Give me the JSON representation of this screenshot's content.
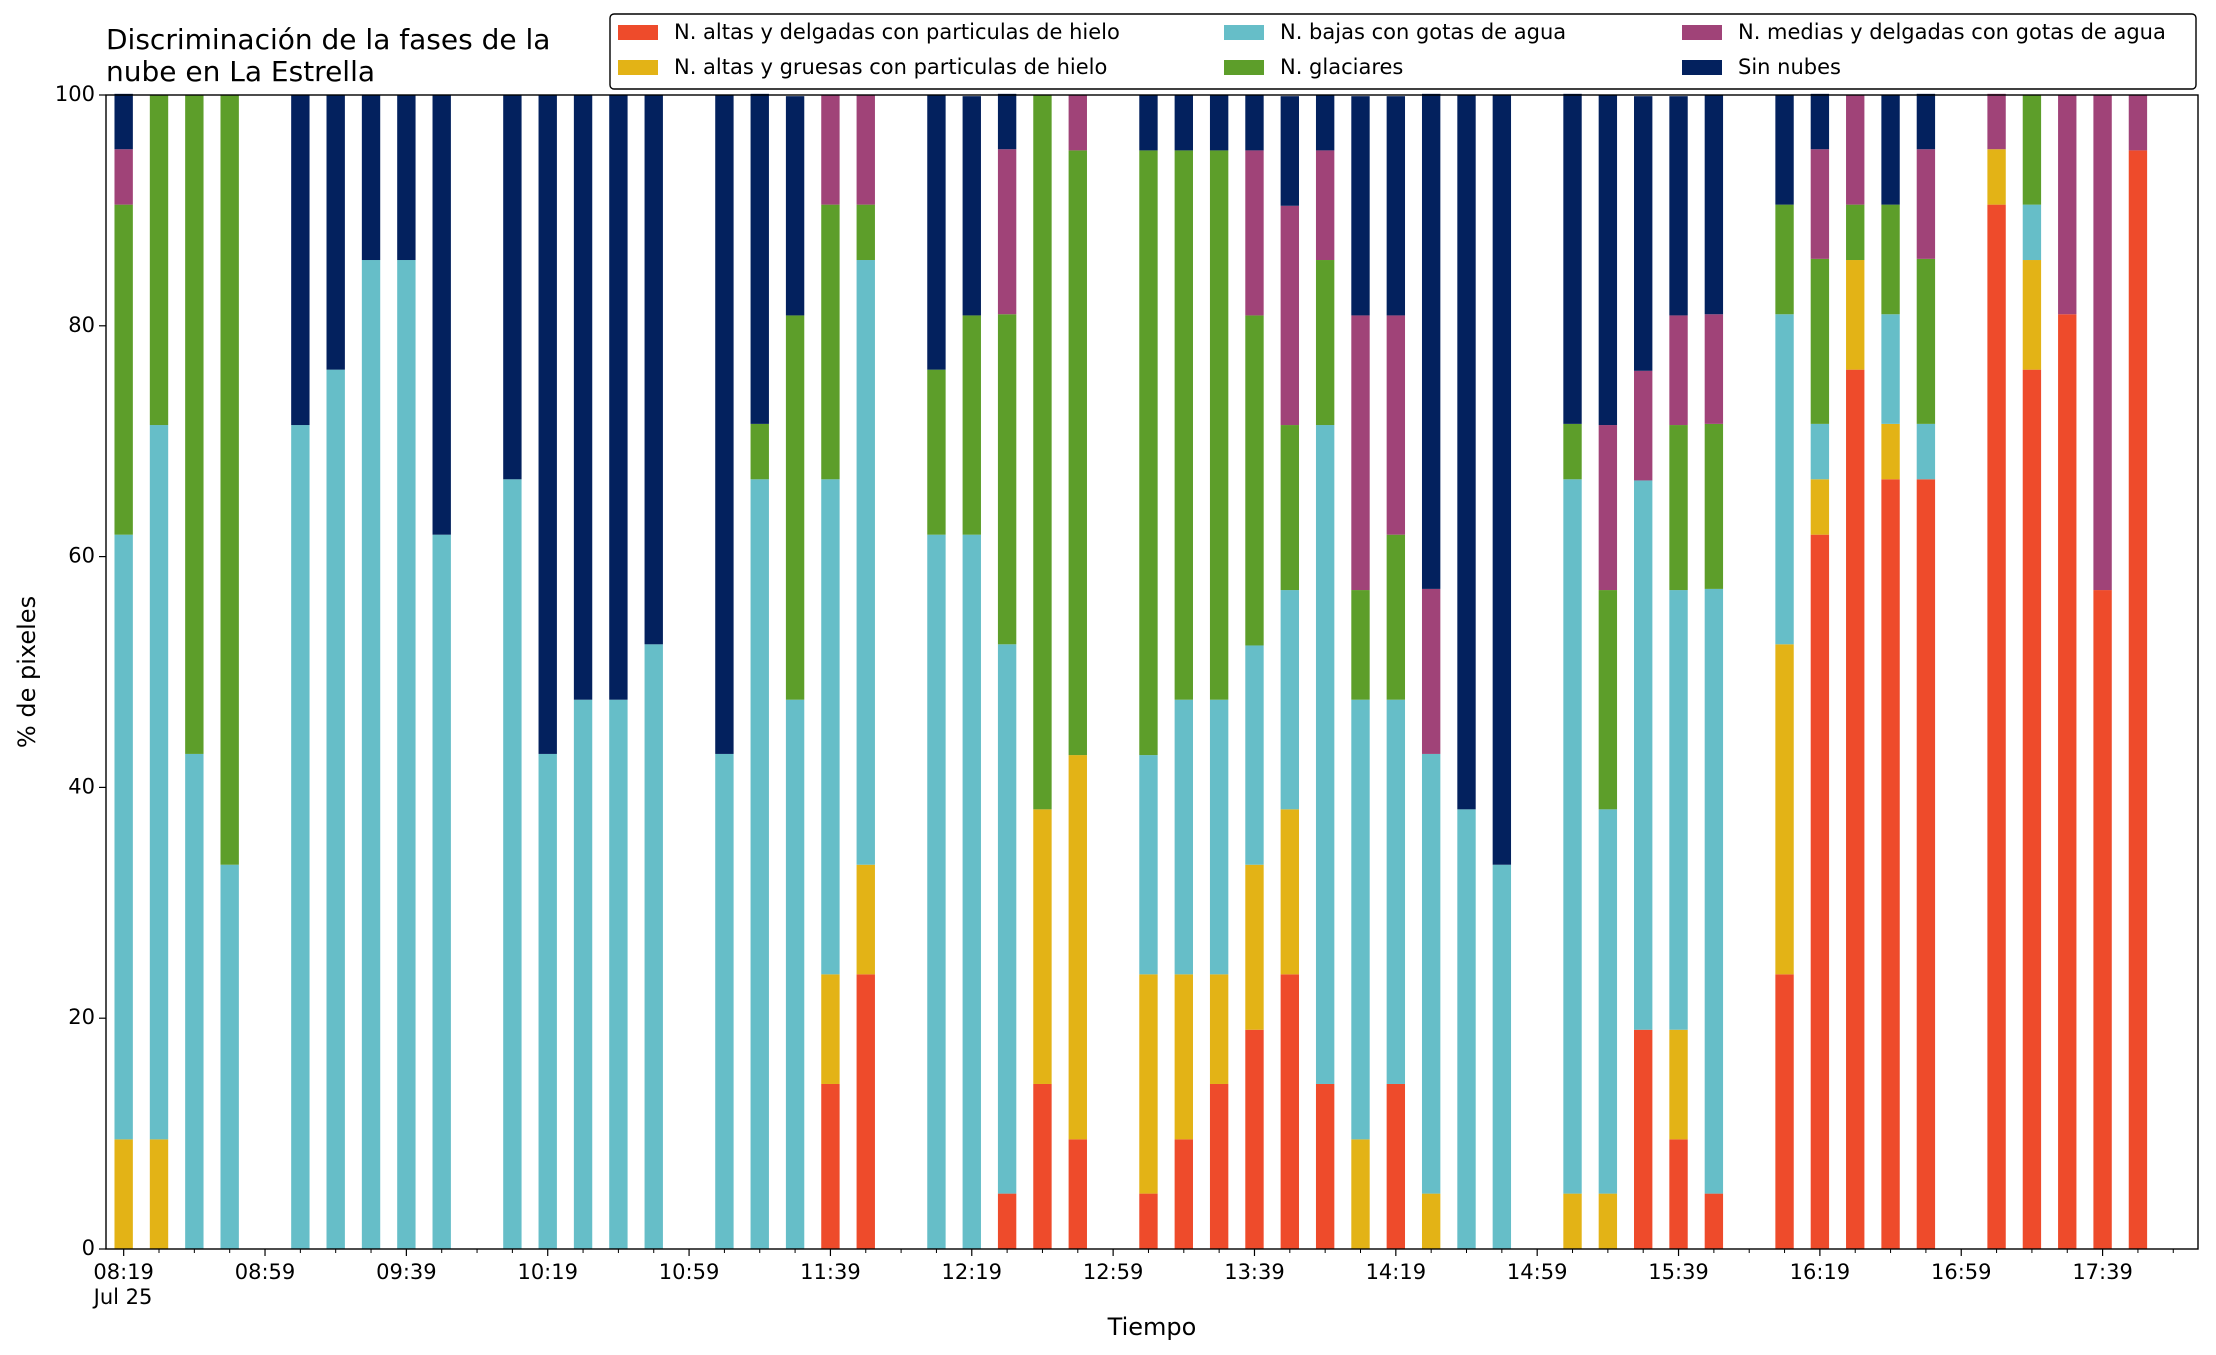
{
  "chart_data": {
    "type": "stacked_bar",
    "title": [
      "Discriminación de la fases de la",
      "nube en La Estrella"
    ],
    "xlabel": "Tiempo",
    "ylabel": "% de pixeles",
    "x_date_label": "Jul 25",
    "x": [
      "08:19",
      "08:29",
      "08:39",
      "08:49",
      "09:09",
      "09:19",
      "09:29",
      "09:39",
      "09:49",
      "10:09",
      "10:19",
      "10:29",
      "10:39",
      "10:49",
      "11:09",
      "11:19",
      "11:29",
      "11:39",
      "11:49",
      "12:09",
      "12:19",
      "12:29",
      "12:39",
      "12:49",
      "13:09",
      "13:19",
      "13:29",
      "13:39",
      "13:49",
      "13:59",
      "14:09",
      "14:19",
      "14:29",
      "14:39",
      "14:49",
      "15:09",
      "15:19",
      "15:29",
      "15:39",
      "15:49",
      "16:09",
      "16:19",
      "16:29",
      "16:39",
      "16:49",
      "17:09",
      "17:19",
      "17:29",
      "17:39",
      "17:49"
    ],
    "series": [
      {
        "name": "N. altas y delgadas con particulas de hielo",
        "color": "#ee4b2b",
        "values": [
          0,
          0,
          0,
          0,
          0,
          0,
          0,
          0,
          0,
          0,
          0,
          0,
          0,
          0,
          0,
          0,
          0,
          14.3,
          23.8,
          0,
          0,
          4.8,
          14.3,
          9.5,
          4.8,
          9.5,
          14.3,
          19.0,
          23.8,
          14.3,
          0,
          14.3,
          0,
          0,
          0,
          0,
          0,
          19.0,
          9.5,
          4.8,
          23.8,
          61.9,
          76.2,
          66.7,
          66.7,
          90.5,
          76.2,
          81.0,
          57.1,
          95.2
        ]
      },
      {
        "name": "N. altas y gruesas con particulas de hielo",
        "color": "#e3b316",
        "values": [
          9.5,
          9.5,
          0,
          0,
          0,
          0,
          0,
          0,
          0,
          0,
          0,
          0,
          0,
          0,
          0,
          0,
          0,
          9.5,
          9.5,
          0,
          0,
          0,
          23.8,
          33.3,
          19.0,
          14.3,
          9.5,
          14.3,
          14.3,
          0,
          9.5,
          0,
          4.8,
          0,
          0,
          4.8,
          4.8,
          0,
          9.5,
          0,
          28.6,
          4.8,
          9.5,
          4.8,
          0,
          4.8,
          9.5,
          0,
          0,
          0
        ]
      },
      {
        "name": "N. bajas con gotas de agua",
        "color": "#66bec8",
        "values": [
          52.4,
          61.9,
          42.9,
          33.3,
          71.4,
          76.2,
          85.7,
          85.7,
          61.9,
          66.7,
          42.9,
          47.6,
          47.6,
          52.4,
          42.9,
          66.7,
          47.6,
          42.9,
          52.4,
          61.9,
          61.9,
          47.6,
          0,
          0,
          19.0,
          23.8,
          23.8,
          19.0,
          19.0,
          57.1,
          38.1,
          33.3,
          38.1,
          38.1,
          33.3,
          61.9,
          33.3,
          47.6,
          38.1,
          52.4,
          28.6,
          4.8,
          0,
          9.5,
          4.8,
          0,
          4.8,
          0,
          0,
          0
        ]
      },
      {
        "name": "N. glaciares",
        "color": "#5d9e2a",
        "values": [
          28.6,
          28.6,
          57.1,
          66.7,
          0,
          0,
          0,
          0,
          0,
          0,
          0,
          0,
          0,
          0,
          0,
          4.8,
          33.3,
          23.8,
          4.8,
          14.3,
          19.0,
          28.6,
          61.9,
          52.4,
          52.4,
          47.6,
          47.6,
          28.6,
          14.3,
          14.3,
          9.5,
          14.3,
          0,
          0,
          0,
          4.8,
          19.0,
          0,
          14.3,
          14.3,
          9.5,
          14.3,
          4.8,
          9.5,
          14.3,
          0,
          9.5,
          0,
          0,
          0
        ]
      },
      {
        "name": "N. medias y delgadas con gotas de agua",
        "color": "#a04378",
        "values": [
          4.8,
          0,
          0,
          0,
          0,
          0,
          0,
          0,
          0,
          0,
          0,
          0,
          0,
          0,
          0,
          0,
          0,
          9.5,
          9.5,
          0,
          0,
          14.3,
          0,
          4.8,
          0,
          0,
          0,
          14.3,
          19.0,
          9.5,
          23.8,
          19.0,
          14.3,
          0,
          0,
          0,
          14.3,
          9.5,
          9.5,
          9.5,
          0,
          9.5,
          9.5,
          0,
          9.5,
          4.8,
          0,
          19.0,
          42.9,
          4.8
        ]
      },
      {
        "name": "Sin nubes",
        "color": "#03215e",
        "values": [
          4.8,
          0,
          0,
          0,
          28.6,
          23.8,
          14.3,
          14.3,
          38.1,
          33.3,
          57.1,
          52.4,
          52.4,
          47.6,
          57.1,
          28.6,
          19.0,
          0,
          0,
          23.8,
          19.0,
          4.8,
          0,
          0,
          4.8,
          4.8,
          4.8,
          4.8,
          9.5,
          4.8,
          19.0,
          19.0,
          42.9,
          61.9,
          66.7,
          28.6,
          28.6,
          23.8,
          19.0,
          19.0,
          9.5,
          4.8,
          0,
          9.5,
          4.8,
          0,
          0,
          0,
          0,
          0
        ]
      }
    ],
    "xlim": [
      "08:14",
      "18:06"
    ],
    "xticks": [
      "08:19",
      "08:59",
      "09:39",
      "10:19",
      "10:59",
      "11:39",
      "12:19",
      "12:59",
      "13:39",
      "14:19",
      "14:59",
      "15:39",
      "16:19",
      "16:59",
      "17:39"
    ],
    "xminorticks": [
      "08:29",
      "08:39",
      "08:49",
      "09:09",
      "09:19",
      "09:29",
      "09:49",
      "09:59",
      "10:09",
      "10:29",
      "10:39",
      "10:49",
      "11:09",
      "11:19",
      "11:29",
      "11:49",
      "11:59",
      "12:09",
      "12:29",
      "12:39",
      "12:49",
      "13:09",
      "13:19",
      "13:29",
      "13:49",
      "13:59",
      "14:09",
      "14:29",
      "14:39",
      "14:49",
      "15:09",
      "15:19",
      "15:29",
      "15:49",
      "15:59",
      "16:09",
      "16:29",
      "16:39",
      "16:49",
      "17:09",
      "17:19",
      "17:29",
      "17:49",
      "17:59"
    ],
    "ylim": [
      0,
      100
    ],
    "yticks": [
      0,
      20,
      40,
      60,
      80,
      100
    ],
    "grid": false,
    "legend": "top"
  }
}
